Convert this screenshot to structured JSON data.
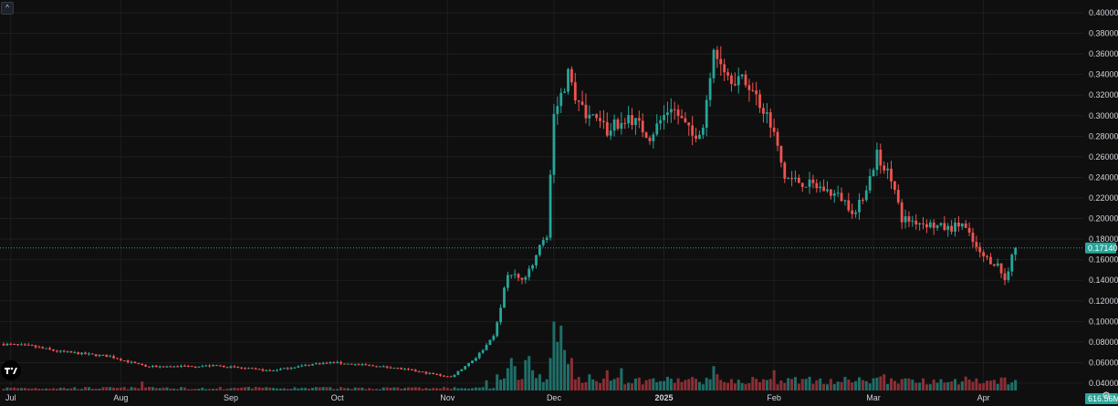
{
  "ui": {
    "collapse_glyph": "^",
    "settings_icon": "gear-icon",
    "logo": "tradingview-logo"
  },
  "colors": {
    "up": "#26a69a",
    "down": "#ef5350",
    "up_volume": "#1f6f69",
    "down_volume": "#8a2f36",
    "grid": "#1e1e1e",
    "background": "#0f0f0f",
    "axis_text": "#d1d4dc"
  },
  "chart_data": {
    "type": "candlestick",
    "price_axis": {
      "min": 0.0,
      "max": 0.4,
      "ticks": [
        "0.40000",
        "0.38000",
        "0.36000",
        "0.34000",
        "0.32000",
        "0.30000",
        "0.28000",
        "0.26000",
        "0.24000",
        "0.22000",
        "0.20000",
        "0.18000",
        "0.16000",
        "0.14000",
        "0.12000",
        "0.10000",
        "0.08000",
        "0.06000",
        "0.04000"
      ]
    },
    "time_axis": {
      "labels": [
        {
          "text": "Jul",
          "day": 2
        },
        {
          "text": "Aug",
          "day": 33
        },
        {
          "text": "Sep",
          "day": 64
        },
        {
          "text": "Oct",
          "day": 94
        },
        {
          "text": "Nov",
          "day": 125
        },
        {
          "text": "Dec",
          "day": 155
        },
        {
          "text": "2025",
          "day": 186,
          "bold": true
        },
        {
          "text": "Feb",
          "day": 217
        },
        {
          "text": "Mar",
          "day": 245
        },
        {
          "text": "Apr",
          "day": 276
        }
      ]
    },
    "last_price": "0.17140",
    "last_volume": "616.56M",
    "grid": true,
    "price_segments": [
      [
        0,
        0.078
      ],
      [
        8,
        0.076
      ],
      [
        15,
        0.071
      ],
      [
        30,
        0.066
      ],
      [
        40,
        0.056
      ],
      [
        60,
        0.057
      ],
      [
        75,
        0.052
      ],
      [
        88,
        0.059
      ],
      [
        93,
        0.06
      ],
      [
        110,
        0.055
      ],
      [
        126,
        0.046
      ],
      [
        133,
        0.065
      ],
      [
        138,
        0.085
      ],
      [
        142,
        0.145
      ],
      [
        147,
        0.14
      ],
      [
        150,
        0.165
      ],
      [
        153,
        0.185
      ],
      [
        155,
        0.3
      ],
      [
        159,
        0.34
      ],
      [
        162,
        0.31
      ],
      [
        170,
        0.285
      ],
      [
        176,
        0.3
      ],
      [
        182,
        0.28
      ],
      [
        188,
        0.31
      ],
      [
        194,
        0.28
      ],
      [
        197,
        0.29
      ],
      [
        200,
        0.37
      ],
      [
        204,
        0.34
      ],
      [
        210,
        0.33
      ],
      [
        216,
        0.295
      ],
      [
        220,
        0.24
      ],
      [
        230,
        0.23
      ],
      [
        236,
        0.22
      ],
      [
        240,
        0.205
      ],
      [
        244,
        0.24
      ],
      [
        246,
        0.262
      ],
      [
        250,
        0.24
      ],
      [
        253,
        0.2
      ],
      [
        260,
        0.195
      ],
      [
        266,
        0.19
      ],
      [
        270,
        0.195
      ],
      [
        275,
        0.165
      ],
      [
        280,
        0.155
      ],
      [
        282,
        0.14
      ],
      [
        285,
        0.172
      ]
    ],
    "volume_max": 180,
    "volume_spikes": [
      [
        39,
        22
      ],
      [
        136,
        25
      ],
      [
        139,
        40
      ],
      [
        142,
        55
      ],
      [
        143,
        80
      ],
      [
        144,
        60
      ],
      [
        147,
        75
      ],
      [
        148,
        85
      ],
      [
        149,
        50
      ],
      [
        151,
        40
      ],
      [
        154,
        80
      ],
      [
        155,
        170
      ],
      [
        156,
        120
      ],
      [
        157,
        160
      ],
      [
        158,
        100
      ],
      [
        159,
        65
      ],
      [
        160,
        80
      ],
      [
        165,
        40
      ],
      [
        170,
        50
      ],
      [
        174,
        55
      ],
      [
        200,
        60
      ],
      [
        201,
        40
      ],
      [
        217,
        50
      ],
      [
        245,
        30
      ],
      [
        247,
        35
      ],
      [
        248,
        40
      ],
      [
        250,
        30
      ],
      [
        283,
        15
      ],
      [
        284,
        20
      ],
      [
        285,
        26
      ]
    ]
  }
}
